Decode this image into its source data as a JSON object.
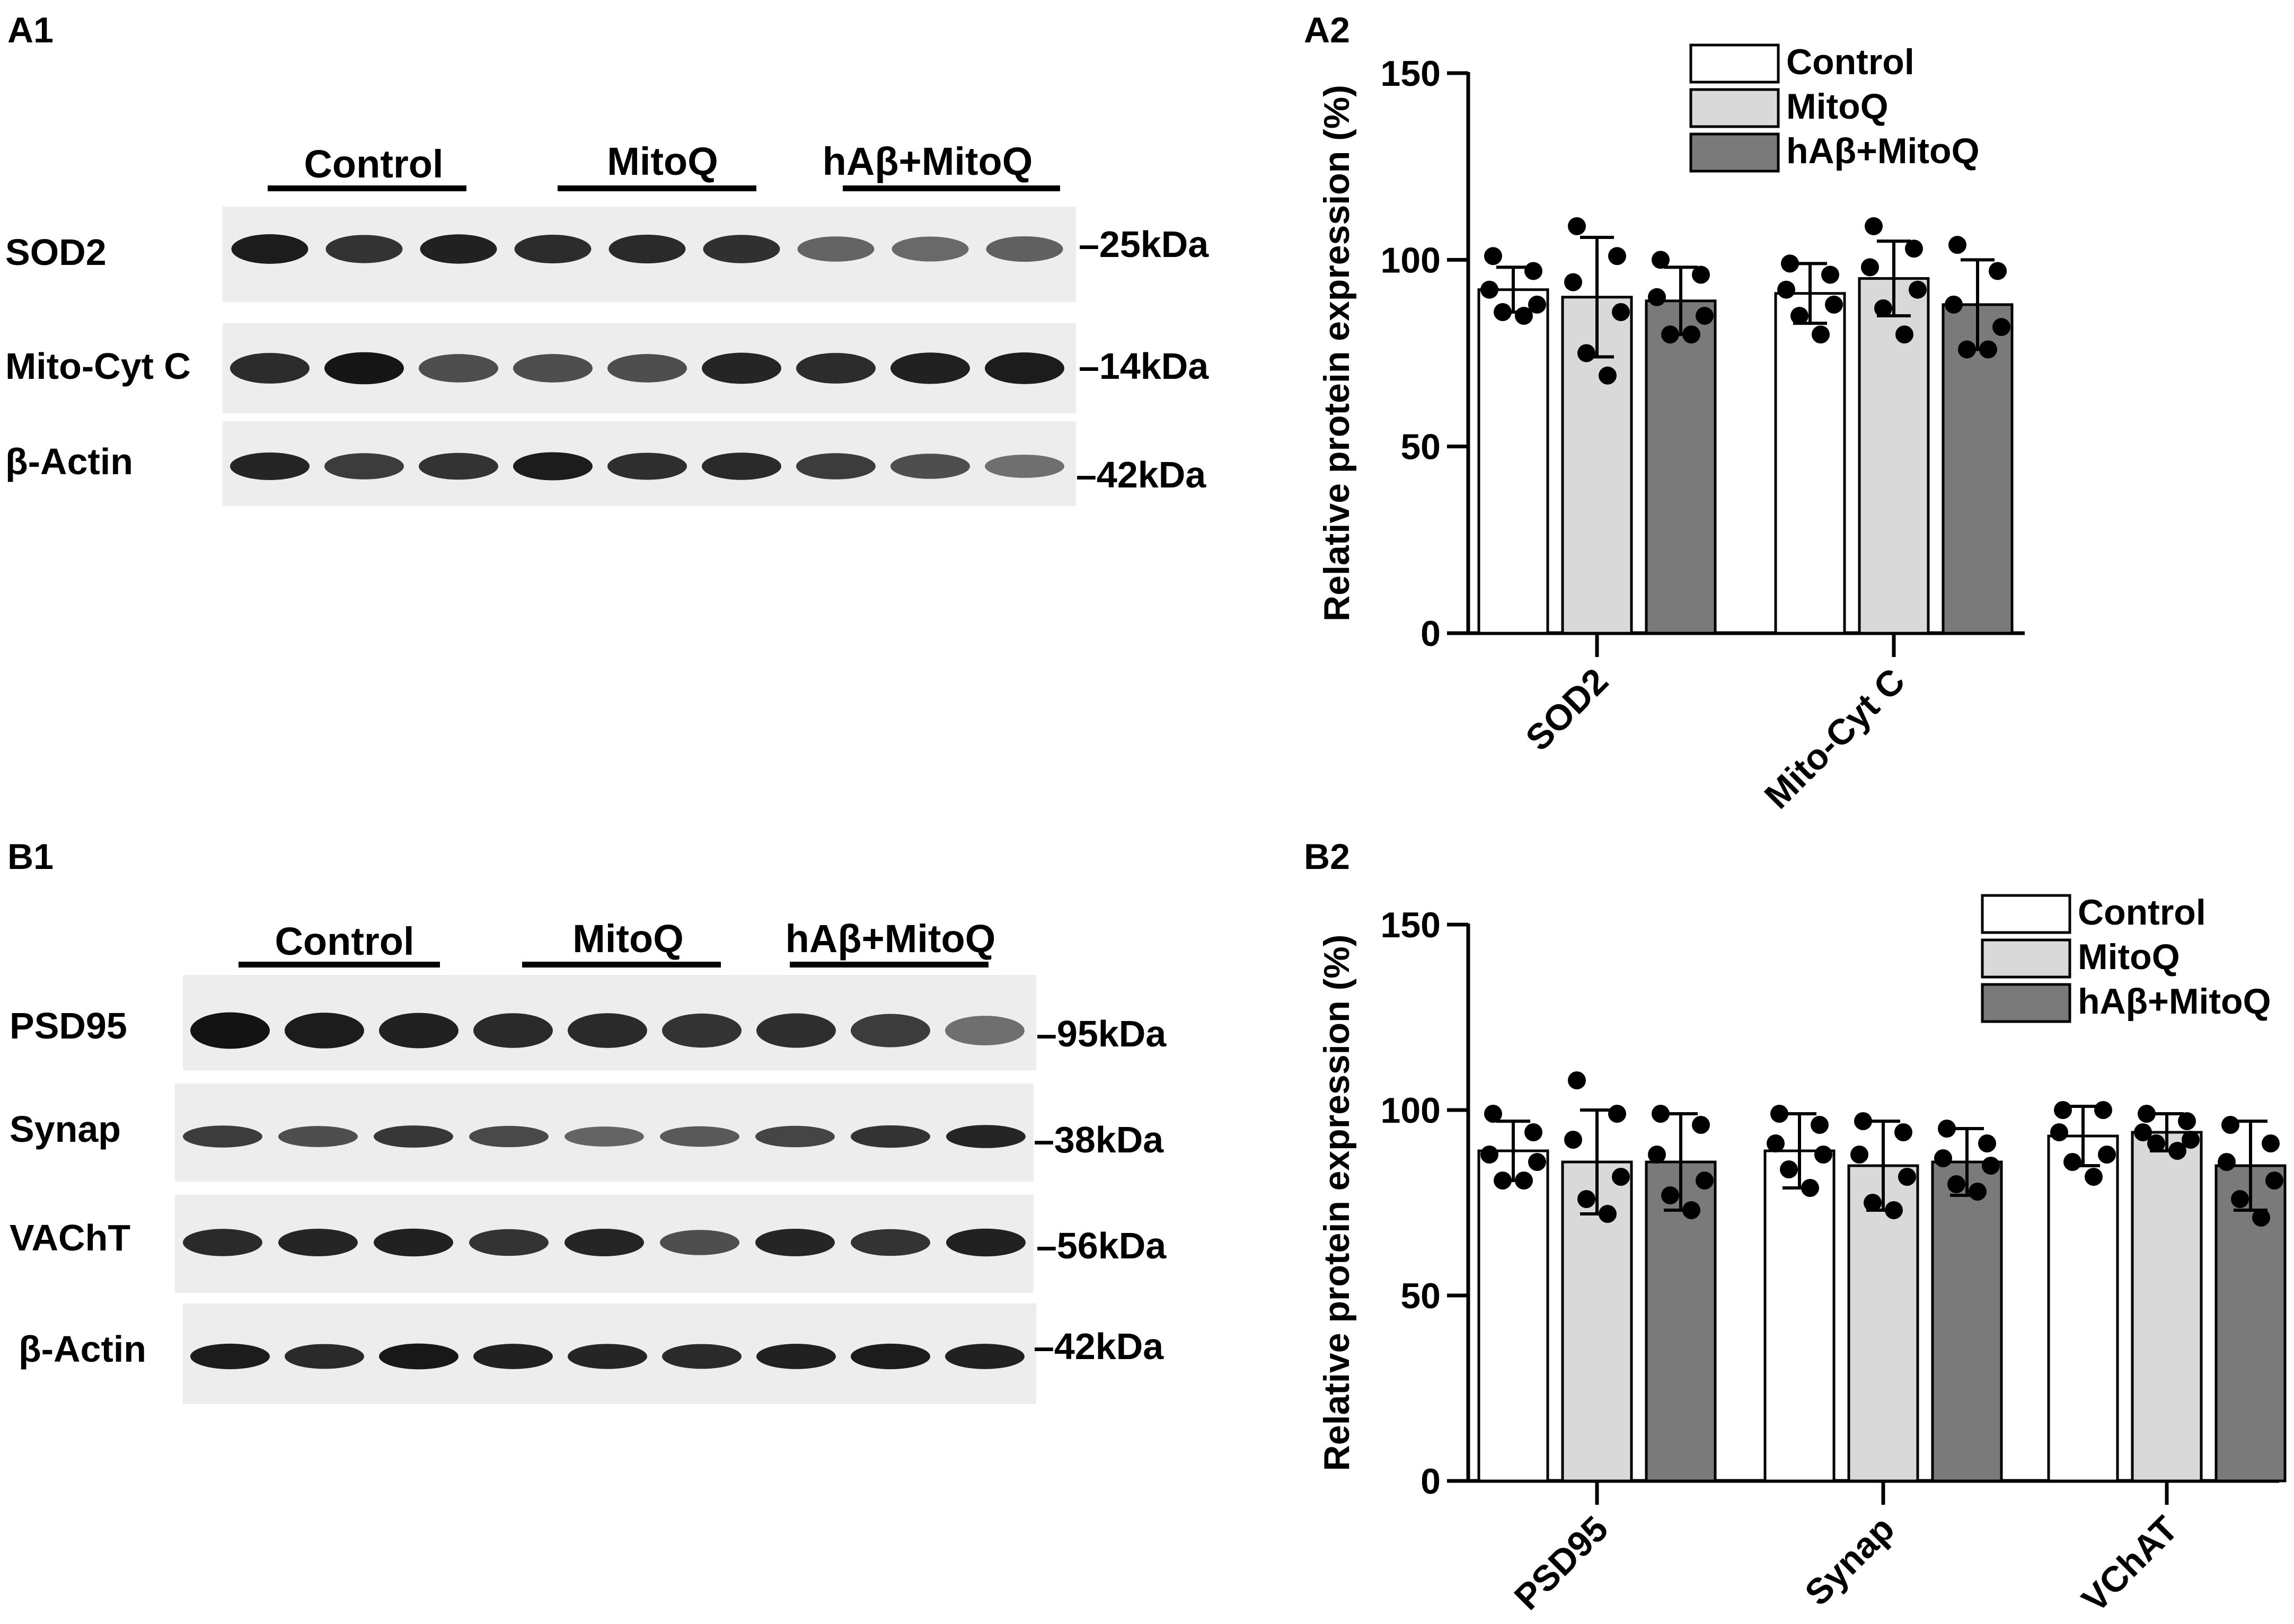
{
  "panels": {
    "a1": "A1",
    "a2": "A2",
    "b1": "B1",
    "b2": "B2"
  },
  "blots": [
    {
      "groups": [
        "Control",
        "MitoQ",
        "hAβ+MitoQ"
      ],
      "rows": [
        {
          "label": "SOD2",
          "marker": "–25kDa",
          "intensity": [
            0.92,
            0.82,
            0.9,
            0.85,
            0.86,
            0.83,
            0.6,
            0.58,
            0.62
          ]
        },
        {
          "label": "Mito-Cyt C",
          "marker": "–14kDa",
          "intensity": [
            0.85,
            0.95,
            0.7,
            0.7,
            0.7,
            0.88,
            0.85,
            0.9,
            0.92
          ]
        },
        {
          "label": "β-Actin",
          "marker": "–42kDa",
          "intensity": [
            0.88,
            0.78,
            0.82,
            0.92,
            0.84,
            0.86,
            0.78,
            0.7,
            0.55
          ]
        }
      ]
    },
    {
      "groups": [
        "Control",
        "MitoQ",
        "hAβ+MitoQ"
      ],
      "rows": [
        {
          "label": "PSD95",
          "marker": "–95kDa",
          "intensity": [
            0.96,
            0.92,
            0.9,
            0.86,
            0.86,
            0.82,
            0.84,
            0.78,
            0.55
          ]
        },
        {
          "label": "Synap",
          "marker": "–38kDa",
          "intensity": [
            0.78,
            0.7,
            0.8,
            0.72,
            0.6,
            0.65,
            0.74,
            0.82,
            0.88
          ]
        },
        {
          "label": "VAChT",
          "marker": "–56kDa",
          "intensity": [
            0.86,
            0.88,
            0.9,
            0.82,
            0.88,
            0.7,
            0.88,
            0.82,
            0.9
          ]
        },
        {
          "label": "β-Actin",
          "marker": "–42kDa",
          "intensity": [
            0.92,
            0.86,
            0.94,
            0.9,
            0.88,
            0.86,
            0.9,
            0.92,
            0.9
          ]
        }
      ]
    }
  ],
  "chart_data": [
    {
      "type": "bar",
      "ylabel": "Relative protein expression (%)",
      "xlabel": "",
      "ylim": [
        0,
        150
      ],
      "yticks": [
        0,
        50,
        100,
        150
      ],
      "legend_position": "top-right",
      "categories": [
        "SOD2",
        "Mito-Cyt C"
      ],
      "series": [
        {
          "name": "Control",
          "color": "#ffffff",
          "values": [
            92,
            91
          ],
          "sd": [
            6,
            8
          ],
          "points": [
            [
              101,
              97,
              92,
              88,
              86,
              85
            ],
            [
              99,
              96,
              92,
              88,
              85,
              80
            ]
          ]
        },
        {
          "name": "MitoQ",
          "color": "#d9d9d9",
          "values": [
            90,
            95
          ],
          "sd": [
            16,
            10
          ],
          "points": [
            [
              109,
              101,
              94,
              86,
              75,
              69
            ],
            [
              109,
              103,
              98,
              92,
              87,
              80
            ]
          ]
        },
        {
          "name": "hAβ+MitoQ",
          "color": "#7a7a7a",
          "values": [
            89,
            88
          ],
          "sd": [
            9,
            12
          ],
          "points": [
            [
              100,
              96,
              90,
              85,
              80,
              80
            ],
            [
              104,
              97,
              88,
              82,
              76,
              76
            ]
          ]
        }
      ]
    },
    {
      "type": "bar",
      "ylabel": "Relative protein expression (%)",
      "xlabel": "",
      "ylim": [
        0,
        150
      ],
      "yticks": [
        0,
        50,
        100,
        150
      ],
      "legend_position": "top-right",
      "categories": [
        "PSD95",
        "Synap",
        "VChAT"
      ],
      "series": [
        {
          "name": "Control",
          "color": "#ffffff",
          "values": [
            89,
            89,
            93
          ],
          "sd": [
            8,
            10,
            8
          ],
          "points": [
            [
              99,
              94,
              88,
              86,
              81,
              81
            ],
            [
              99,
              96,
              91,
              88,
              84,
              79
            ],
            [
              100,
              100,
              94,
              88,
              86,
              82
            ]
          ]
        },
        {
          "name": "MitoQ",
          "color": "#d9d9d9",
          "values": [
            86,
            85,
            94
          ],
          "sd": [
            14,
            12,
            5
          ],
          "points": [
            [
              108,
              99,
              92,
              82,
              76,
              72
            ],
            [
              97,
              94,
              88,
              82,
              75,
              73
            ],
            [
              99,
              97,
              94,
              92,
              91,
              89
            ]
          ]
        },
        {
          "name": "hAβ+MitoQ",
          "color": "#7a7a7a",
          "values": [
            86,
            86,
            85
          ],
          "sd": [
            13,
            9,
            12
          ],
          "points": [
            [
              99,
              96,
              88,
              81,
              77,
              73
            ],
            [
              95,
              91,
              87,
              85,
              80,
              78
            ],
            [
              96,
              91,
              86,
              81,
              76,
              71
            ]
          ]
        }
      ]
    }
  ]
}
